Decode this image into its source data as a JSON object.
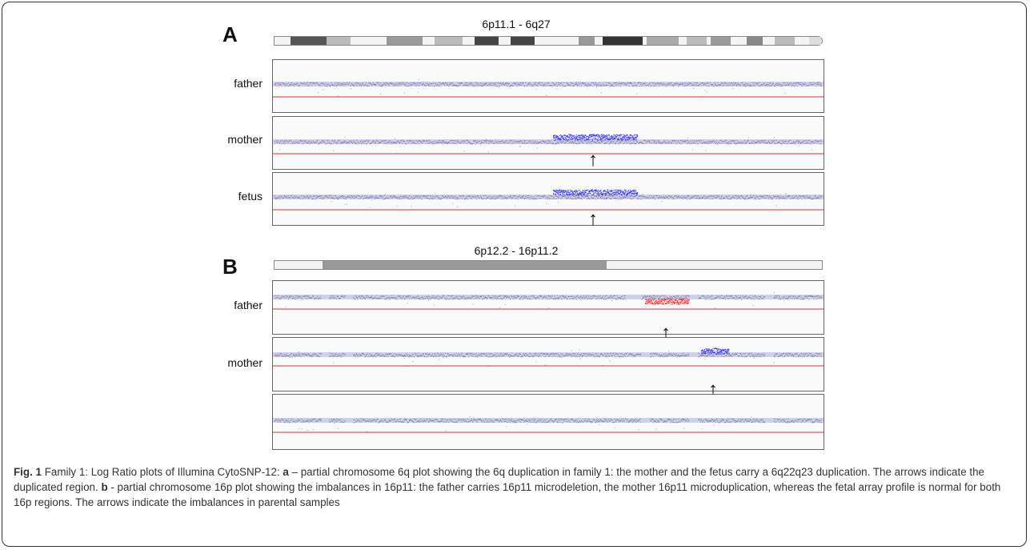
{
  "panels": {
    "a": {
      "letter": "A",
      "region": "6p11.1 - 6q27",
      "samples": [
        {
          "label": "father",
          "duplication": false,
          "arrow": false
        },
        {
          "label": "mother",
          "duplication": true,
          "arrow": true
        },
        {
          "label": "fetus",
          "duplication": true,
          "arrow": true
        }
      ]
    },
    "b": {
      "letter": "B",
      "region": "6p12.2 - 16p11.2",
      "samples": [
        {
          "label": "father",
          "event": "deletion",
          "arrow": true
        },
        {
          "label": "mother",
          "event": "duplication",
          "arrow": true
        },
        {
          "label": "",
          "event": "none",
          "arrow": false
        }
      ]
    }
  },
  "arrow_glyph": "↑",
  "colors": {
    "normal_points": "#4a4a4a",
    "baseline": "#3b3bd6",
    "threshold": "#e03030",
    "duplication": "#2a2aff",
    "deletion": "#ff2020"
  },
  "caption": {
    "fig_label": "Fig. 1",
    "intro": " Family 1: Log Ratio plots of Illumina CytoSNP-12: ",
    "a_label": "a",
    "a_text": " – partial chromosome 6q plot showing the 6q duplication in family 1: the mother and the fetus carry a 6q22q23 duplication. The arrows indicate the duplicated region. ",
    "b_label": "b",
    "b_text": " - partial chromosome 16p plot showing the imbalances in 16p11: the father carries 16p11 microdeletion, the mother 16p11 microduplication, whereas the fetal array profile is normal for both 16p regions. The arrows indicate the imbalances in parental samples"
  }
}
